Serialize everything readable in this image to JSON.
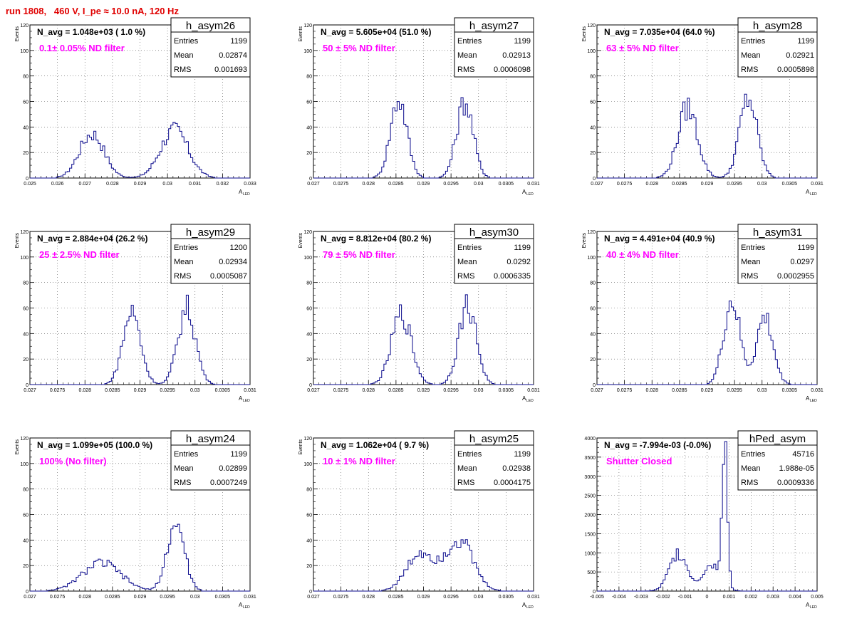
{
  "page": {
    "title": "run 1808,   460 V, I_pe ≈ 10.0 nA, 120 Hz"
  },
  "colors": {
    "title": "#e00000",
    "histogram_line": "#0a0a8c",
    "annotation": "#ff00ff",
    "grid": "#555555"
  },
  "chart_data": [
    {
      "type": "histogram",
      "name": "h_asym26",
      "nav": "N_avg = 1.048e+03 ( 1.0 %)",
      "filter": "0.1± 0.05% ND filter",
      "stats": {
        "entries": "1199",
        "mean": "0.02874",
        "rms": "0.001693"
      },
      "xlabel": "A",
      "xlabel_sub": "LED",
      "ylabel": "Events",
      "xlim": [
        0.025,
        0.033
      ],
      "ylim": [
        0,
        120
      ],
      "xticks": [
        0.025,
        0.026,
        0.027,
        0.028,
        0.029,
        0.03,
        0.031,
        0.032,
        0.033
      ],
      "xtick_labels": [
        "0.025",
        "0.026",
        "0.027",
        "0.028",
        "0.029",
        "0.03",
        "0.031",
        "0.032",
        "0.033"
      ],
      "yticks": [
        0,
        20,
        40,
        60,
        80,
        100,
        120
      ],
      "peaks": [
        {
          "mu": 0.02725,
          "sigma": 0.00045,
          "amp": 35
        },
        {
          "mu": 0.03025,
          "sigma": 0.0005,
          "amp": 38
        }
      ],
      "grid": true
    },
    {
      "type": "histogram",
      "name": "h_asym27",
      "nav": "N_avg = 5.605e+04 (51.0 %)",
      "filter": "50 ± 5% ND filter",
      "stats": {
        "entries": "1199",
        "mean": "0.02913",
        "rms": "0.0006098"
      },
      "xlabel": "A",
      "xlabel_sub": "LED",
      "ylabel": "Events",
      "xlim": [
        0.027,
        0.031
      ],
      "ylim": [
        0,
        120
      ],
      "xticks": [
        0.027,
        0.0275,
        0.028,
        0.0285,
        0.029,
        0.0295,
        0.03,
        0.0305,
        0.031
      ],
      "xtick_labels": [
        "0.027",
        "0.0275",
        "0.028",
        "0.0285",
        "0.029",
        "0.0295",
        "0.03",
        "0.0305",
        "0.031"
      ],
      "yticks": [
        0,
        20,
        40,
        60,
        80,
        100,
        120
      ],
      "peaks": [
        {
          "mu": 0.02855,
          "sigma": 0.00015,
          "amp": 62
        },
        {
          "mu": 0.02975,
          "sigma": 0.00015,
          "amp": 60
        }
      ],
      "grid": true
    },
    {
      "type": "histogram",
      "name": "h_asym28",
      "nav": "N_avg = 7.035e+04 (64.0 %)",
      "filter": "63 ± 5% ND filter",
      "stats": {
        "entries": "1199",
        "mean": "0.02921",
        "rms": "0.0005898"
      },
      "xlabel": "A",
      "xlabel_sub": "LED",
      "ylabel": "Events",
      "xlim": [
        0.027,
        0.031
      ],
      "ylim": [
        0,
        120
      ],
      "xticks": [
        0.027,
        0.0275,
        0.028,
        0.0285,
        0.029,
        0.0295,
        0.03,
        0.0305,
        0.031
      ],
      "xtick_labels": [
        "0.027",
        "0.0275",
        "0.028",
        "0.0285",
        "0.029",
        "0.0295",
        "0.03",
        "0.0305",
        "0.031"
      ],
      "yticks": [
        0,
        20,
        40,
        60,
        80,
        100,
        120
      ],
      "peaks": [
        {
          "mu": 0.02865,
          "sigma": 0.00018,
          "amp": 55
        },
        {
          "mu": 0.02975,
          "sigma": 0.00016,
          "amp": 62
        }
      ],
      "grid": true
    },
    {
      "type": "histogram",
      "name": "h_asym29",
      "nav": "N_avg = 2.884e+04 (26.2 %)",
      "filter": "25 ± 2.5% ND filter",
      "stats": {
        "entries": "1200",
        "mean": "0.02934",
        "rms": "0.0005087"
      },
      "xlabel": "A",
      "xlabel_sub": "LED",
      "ylabel": "Events",
      "xlim": [
        0.027,
        0.031
      ],
      "ylim": [
        0,
        120
      ],
      "xticks": [
        0.027,
        0.0275,
        0.028,
        0.0285,
        0.029,
        0.0295,
        0.03,
        0.0305,
        0.031
      ],
      "xtick_labels": [
        "0.027",
        "0.0275",
        "0.028",
        "0.0285",
        "0.029",
        "0.0295",
        "0.03",
        "0.0305",
        "0.031"
      ],
      "yticks": [
        0,
        20,
        40,
        60,
        80,
        100,
        120
      ],
      "peaks": [
        {
          "mu": 0.02885,
          "sigma": 0.00016,
          "amp": 57
        },
        {
          "mu": 0.02985,
          "sigma": 0.00016,
          "amp": 60
        }
      ],
      "grid": true
    },
    {
      "type": "histogram",
      "name": "h_asym30",
      "nav": "N_avg = 8.812e+04 (80.2 %)",
      "filter": "79 ± 5% ND filter",
      "stats": {
        "entries": "1199",
        "mean": "0.0292",
        "rms": "0.0006335"
      },
      "xlabel": "A",
      "xlabel_sub": "LED",
      "ylabel": "Events",
      "xlim": [
        0.027,
        0.031
      ],
      "ylim": [
        0,
        120
      ],
      "xticks": [
        0.027,
        0.0275,
        0.028,
        0.0285,
        0.029,
        0.0295,
        0.03,
        0.0305,
        0.031
      ],
      "xtick_labels": [
        "0.027",
        "0.0275",
        "0.028",
        "0.0285",
        "0.029",
        "0.0295",
        "0.03",
        "0.0305",
        "0.031"
      ],
      "yticks": [
        0,
        20,
        40,
        60,
        80,
        100,
        120
      ],
      "peaks": [
        {
          "mu": 0.0286,
          "sigma": 0.00018,
          "amp": 55
        },
        {
          "mu": 0.0298,
          "sigma": 0.00016,
          "amp": 62
        }
      ],
      "grid": true
    },
    {
      "type": "histogram",
      "name": "h_asym31",
      "nav": "N_avg = 4.491e+04 (40.9 %)",
      "filter": "40 ± 4% ND filter",
      "stats": {
        "entries": "1199",
        "mean": "0.0297",
        "rms": "0.0002955"
      },
      "xlabel": "A",
      "xlabel_sub": "LED",
      "ylabel": "Events",
      "xlim": [
        0.027,
        0.031
      ],
      "ylim": [
        0,
        120
      ],
      "xticks": [
        0.027,
        0.0275,
        0.028,
        0.0285,
        0.029,
        0.0295,
        0.03,
        0.0305,
        0.031
      ],
      "xtick_labels": [
        "0.027",
        "0.0275",
        "0.028",
        "0.0285",
        "0.029",
        "0.0295",
        "0.03",
        "0.0305",
        "0.031"
      ],
      "yticks": [
        0,
        20,
        40,
        60,
        80,
        100,
        120
      ],
      "peaks": [
        {
          "mu": 0.02945,
          "sigma": 0.00015,
          "amp": 65
        },
        {
          "mu": 0.03005,
          "sigma": 0.00015,
          "amp": 52
        }
      ],
      "grid": true
    },
    {
      "type": "histogram",
      "name": "h_asym24",
      "nav": "N_avg = 1.099e+05 (100.0 %)",
      "filter": "100% (No filter)",
      "stats": {
        "entries": "1199",
        "mean": "0.02899",
        "rms": "0.0007249"
      },
      "xlabel": "A",
      "xlabel_sub": "LED",
      "ylabel": "Events",
      "xlim": [
        0.027,
        0.031
      ],
      "ylim": [
        0,
        120
      ],
      "xticks": [
        0.027,
        0.0275,
        0.028,
        0.0285,
        0.029,
        0.0295,
        0.03,
        0.0305,
        0.031
      ],
      "xtick_labels": [
        "0.027",
        "0.0275",
        "0.028",
        "0.0285",
        "0.029",
        "0.0295",
        "0.03",
        "0.0305",
        "0.031"
      ],
      "yticks": [
        0,
        20,
        40,
        60,
        80,
        100,
        120
      ],
      "peaks": [
        {
          "mu": 0.0283,
          "sigma": 0.00035,
          "amp": 22
        },
        {
          "mu": 0.02965,
          "sigma": 0.00016,
          "amp": 52
        }
      ],
      "grid": true
    },
    {
      "type": "histogram",
      "name": "h_asym25",
      "nav": "N_avg = 1.062e+04 ( 9.7 %)",
      "filter": "10 ± 1% ND filter",
      "stats": {
        "entries": "1199",
        "mean": "0.02938",
        "rms": "0.0004175"
      },
      "xlabel": "A",
      "xlabel_sub": "LED",
      "ylabel": "Events",
      "xlim": [
        0.027,
        0.031
      ],
      "ylim": [
        0,
        120
      ],
      "xticks": [
        0.027,
        0.0275,
        0.028,
        0.0285,
        0.029,
        0.0295,
        0.03,
        0.0305,
        0.031
      ],
      "xtick_labels": [
        "0.027",
        "0.0275",
        "0.028",
        "0.0285",
        "0.029",
        "0.0295",
        "0.03",
        "0.0305",
        "0.031"
      ],
      "yticks": [
        0,
        20,
        40,
        60,
        80,
        100,
        120
      ],
      "peaks": [
        {
          "mu": 0.02895,
          "sigma": 0.00025,
          "amp": 30
        },
        {
          "mu": 0.02965,
          "sigma": 0.00025,
          "amp": 40
        }
      ],
      "grid": true
    },
    {
      "type": "histogram",
      "name": "hPed_asym",
      "nav": "N_avg = -7.994e-03 (-0.0%)",
      "filter": "Shutter Closed",
      "stats": {
        "entries": "45716",
        "mean": "1.988e-05",
        "rms": "0.0009336"
      },
      "xlabel": "A",
      "xlabel_sub": "LED",
      "ylabel": "",
      "xlim": [
        -0.005,
        0.005
      ],
      "ylim": [
        0,
        4000
      ],
      "xticks": [
        -0.005,
        -0.004,
        -0.003,
        -0.002,
        -0.001,
        0,
        0.001,
        0.002,
        0.003,
        0.004,
        0.005
      ],
      "xtick_labels": [
        "-0.005",
        "-0.004",
        "-0.003",
        "-0.002",
        "-0.001",
        "0",
        "0.001",
        "0.002",
        "0.003",
        "0.004",
        "0.005"
      ],
      "yticks": [
        0,
        500,
        1000,
        1500,
        2000,
        2500,
        3000,
        3500,
        4000
      ],
      "peaks": [
        {
          "mu": -0.0013,
          "sigma": 0.0004,
          "amp": 1000
        },
        {
          "mu": 0.0008,
          "sigma": 0.00012,
          "amp": 3900
        },
        {
          "mu": 0.0002,
          "sigma": 0.0004,
          "amp": 700
        }
      ],
      "grid": true
    }
  ]
}
